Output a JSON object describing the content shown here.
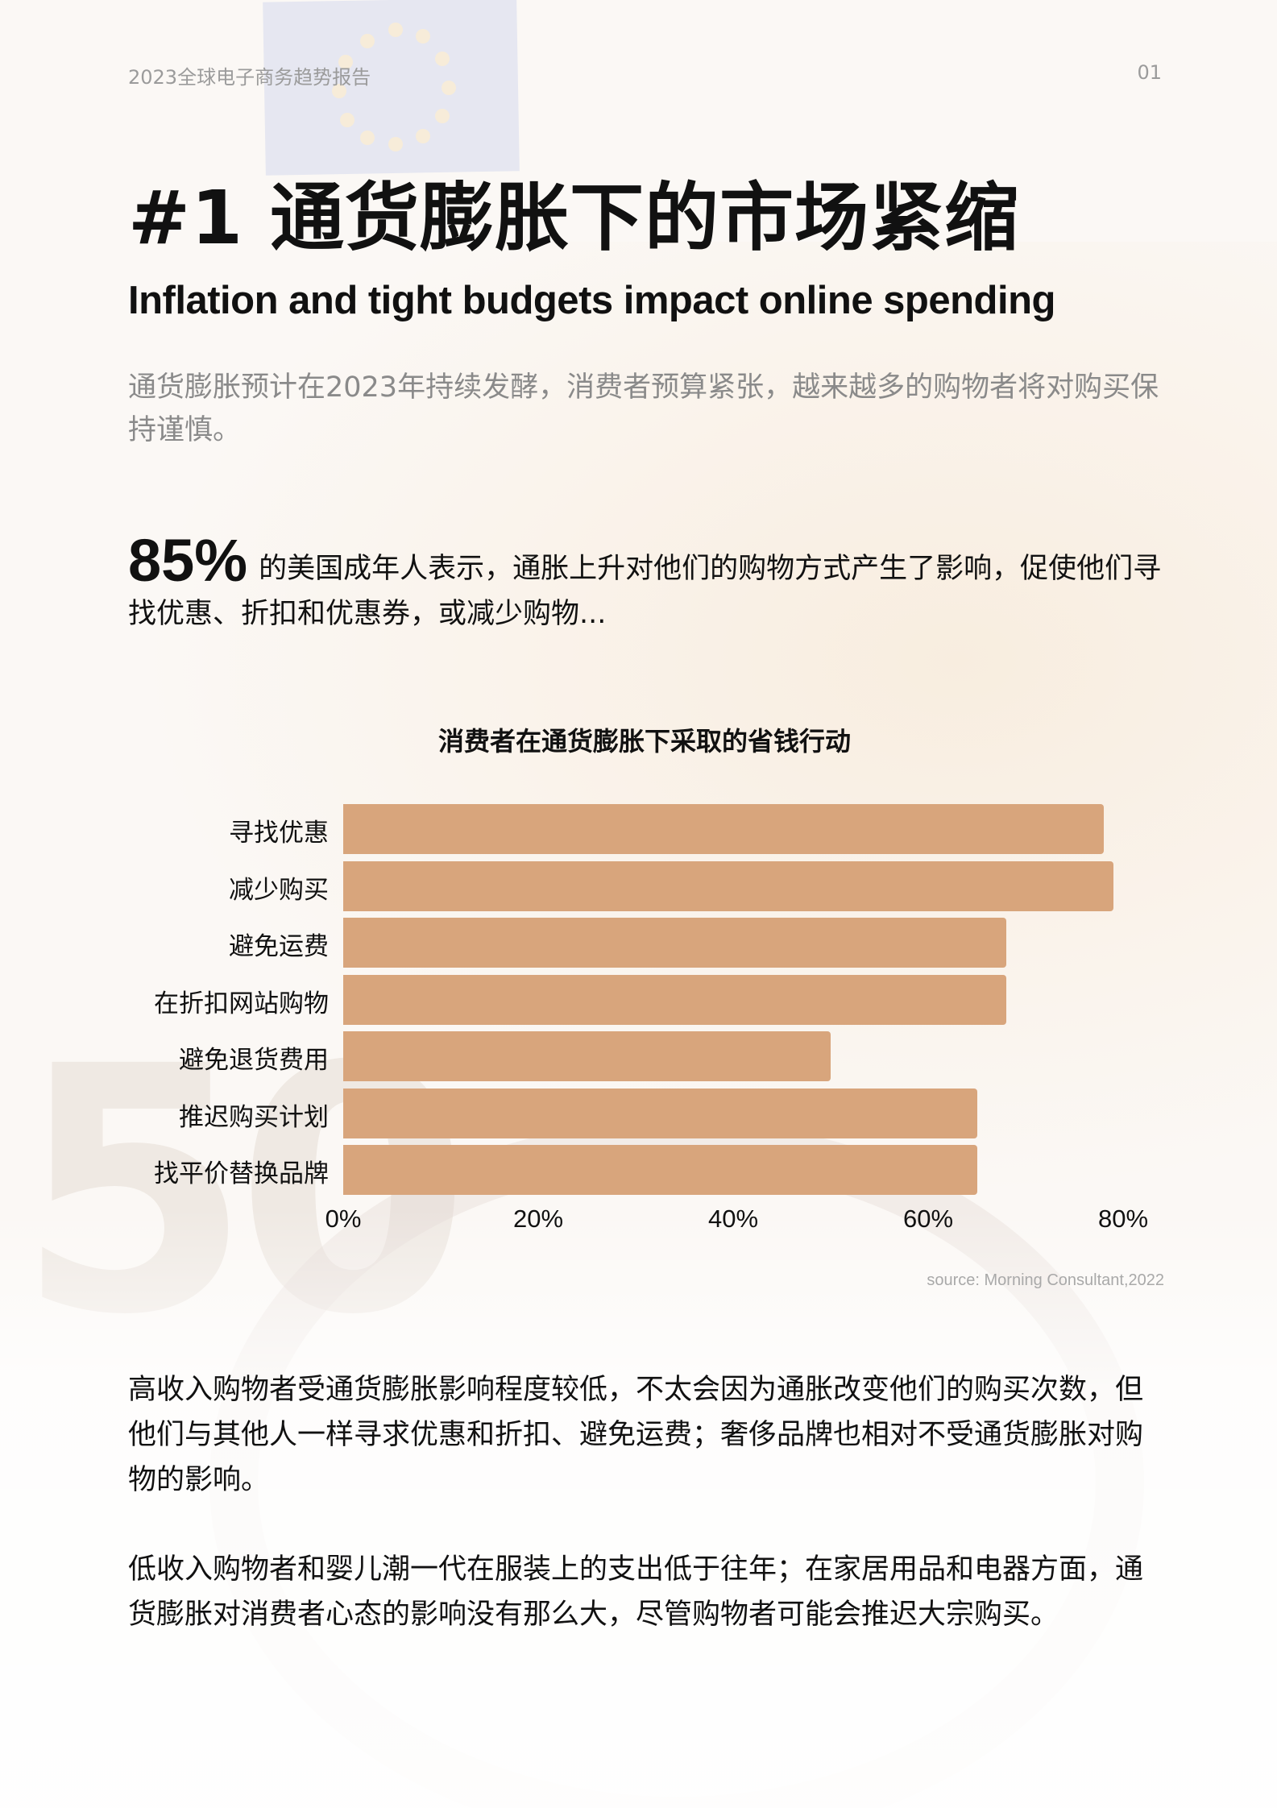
{
  "header": {
    "report_title": "2023全球电子商务趋势报告",
    "page_number": "01"
  },
  "title": {
    "main": "#1 通货膨胀下的市场紧缩",
    "sub": "Inflation and tight budgets impact online spending"
  },
  "intro": "通货膨胀预计在2023年持续发酵，消费者预算紧张，越来越多的购物者将对购买保持谨慎。",
  "stat": {
    "value": "85%",
    "text": "的美国成年人表示，通胀上升对他们的购物方式产生了影响，促使他们寻找优惠、折扣和优惠券，或减少购物..."
  },
  "chart_data": {
    "type": "bar",
    "orientation": "horizontal",
    "title": "消费者在通货膨胀下采取的省钱行动",
    "categories": [
      "寻找优惠",
      "减少购买",
      "避免运费",
      "在折扣网站购物",
      "避免退货费用",
      "推迟购买计划",
      "找平价替换品牌"
    ],
    "values": [
      78,
      79,
      68,
      68,
      50,
      65,
      65
    ],
    "unit": "%",
    "xlabel": "",
    "ylabel": "",
    "xlim": [
      0,
      80
    ],
    "ticks": [
      "0%",
      "20%",
      "40%",
      "60%",
      "80%"
    ],
    "grid": false,
    "legend": "none",
    "bar_color": "#d8a57c",
    "source": "source: Morning Consultant,2022"
  },
  "paragraphs": [
    "高收入购物者受通货膨胀影响程度较低，不太会因为通胀改变他们的购买次数，但他们与其他人一样寻求优惠和折扣、避免运费；奢侈品牌也相对不受通货膨胀对购物的影响。",
    "低收入购物者和婴儿潮一代在服装上的支出低于往年；在家居用品和电器方面，通货膨胀对消费者心态的影响没有那么大，尽管购物者可能会推迟大宗购买。"
  ]
}
